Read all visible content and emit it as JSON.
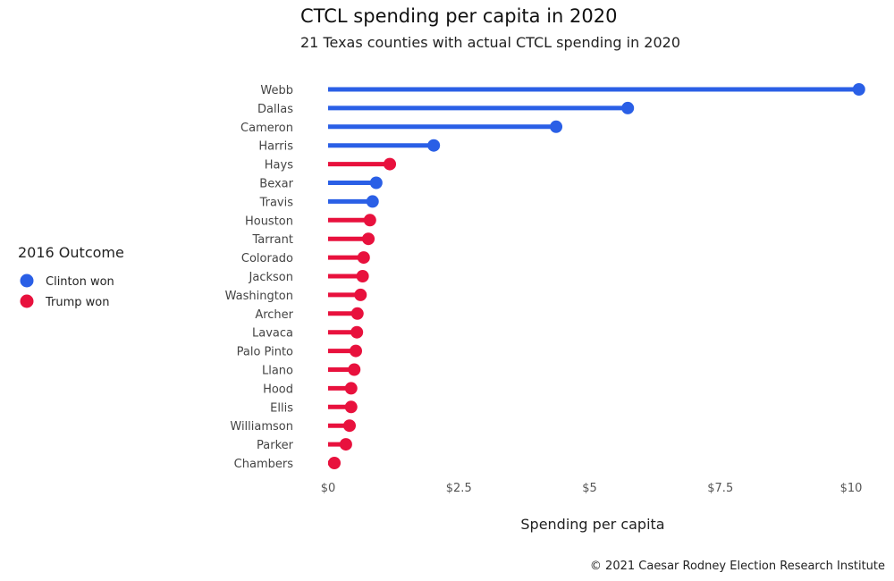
{
  "chart_data": {
    "type": "lollipop",
    "title": "CTCL spending per capita in 2020",
    "subtitle": "21 Texas counties with actual CTCL spending in 2020",
    "xlabel": "Spending per capita",
    "ylabel": "",
    "xlim": [
      0,
      10.3
    ],
    "xticks": [
      0,
      2.5,
      5,
      7.5,
      10
    ],
    "xtick_labels": [
      "$0",
      "$2.5",
      "$5",
      "$7.5",
      "$10"
    ],
    "grid": false,
    "legend": {
      "title": "2016 Outcome",
      "placement": "left",
      "entries": [
        {
          "key": "clinton",
          "label": "Clinton won",
          "color": "#2a5fe6"
        },
        {
          "key": "trump",
          "label": "Trump won",
          "color": "#e8113d"
        }
      ]
    },
    "caption": "© 2021 Caesar Rodney Election Research Institute",
    "categories": [
      "Webb",
      "Dallas",
      "Cameron",
      "Harris",
      "Hays",
      "Bexar",
      "Travis",
      "Houston",
      "Tarrant",
      "Colorado",
      "Jackson",
      "Washington",
      "Archer",
      "Lavaca",
      "Palo Pinto",
      "Llano",
      "Hood",
      "Ellis",
      "Williamson",
      "Parker",
      "Chambers"
    ],
    "values": [
      10.15,
      5.73,
      4.36,
      2.02,
      1.18,
      0.92,
      0.85,
      0.8,
      0.77,
      0.68,
      0.66,
      0.62,
      0.56,
      0.55,
      0.53,
      0.5,
      0.44,
      0.44,
      0.41,
      0.34,
      0.12
    ],
    "outcome": [
      "clinton",
      "clinton",
      "clinton",
      "clinton",
      "trump",
      "clinton",
      "clinton",
      "trump",
      "trump",
      "trump",
      "trump",
      "trump",
      "trump",
      "trump",
      "trump",
      "trump",
      "trump",
      "trump",
      "trump",
      "trump",
      "trump"
    ]
  }
}
